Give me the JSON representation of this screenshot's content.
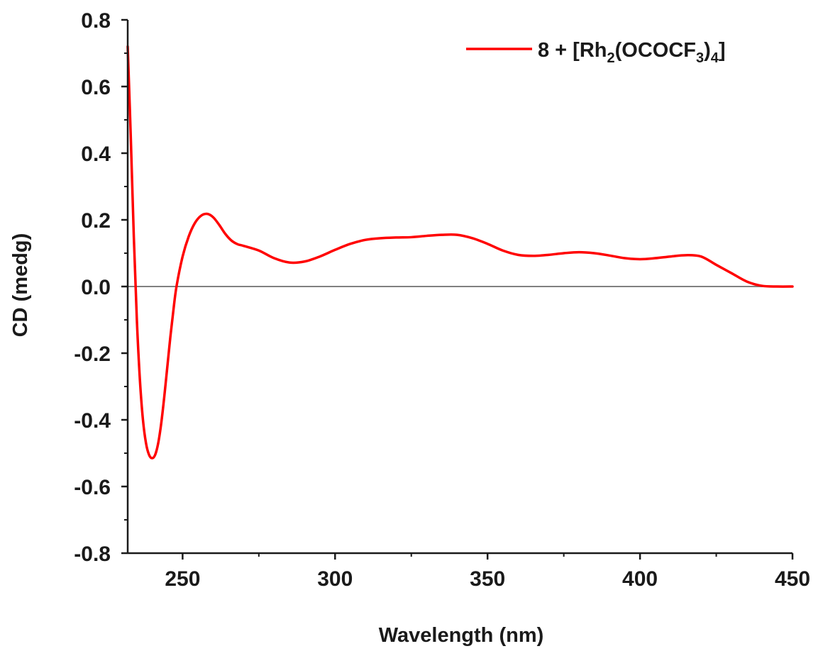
{
  "chart_data": {
    "type": "line",
    "xlabel": "Wavelength (nm)",
    "ylabel": "CD  (medg)",
    "xlim": [
      232,
      450
    ],
    "ylim": [
      -0.8,
      0.8
    ],
    "xticks": [
      {
        "value": 250,
        "label": "250"
      },
      {
        "value": 300,
        "label": "300"
      },
      {
        "value": 350,
        "label": "350"
      },
      {
        "value": 400,
        "label": "400"
      },
      {
        "value": 450,
        "label": "450"
      }
    ],
    "yticks": [
      {
        "value": 0.8,
        "label": "0.8"
      },
      {
        "value": 0.6,
        "label": "0.6"
      },
      {
        "value": 0.4,
        "label": "0.4"
      },
      {
        "value": 0.2,
        "label": "0.2"
      },
      {
        "value": 0.0,
        "label": "0.0"
      },
      {
        "value": -0.2,
        "label": "-0.2"
      },
      {
        "value": -0.4,
        "label": "-0.4"
      },
      {
        "value": -0.6,
        "label": "-0.6"
      },
      {
        "value": -0.8,
        "label": "-0.8"
      }
    ],
    "zero_line": true,
    "grid": false,
    "legend_position": "top-right",
    "series": [
      {
        "name": "8 + [Rh2(OCOCF3)4]",
        "legend_parts": [
          "8 + [Rh",
          "2",
          "(OCOCF",
          "3",
          ")",
          "4",
          "]"
        ],
        "color": "#ff0000",
        "x": [
          232,
          233,
          234,
          235,
          236,
          237,
          238,
          239,
          240,
          241,
          242,
          243,
          244,
          245,
          246,
          247,
          248,
          250,
          252,
          254,
          256,
          258,
          260,
          262,
          264,
          266,
          268,
          270,
          275,
          280,
          285,
          290,
          295,
          300,
          305,
          310,
          315,
          320,
          325,
          330,
          335,
          340,
          345,
          350,
          355,
          360,
          365,
          370,
          375,
          380,
          385,
          390,
          395,
          400,
          405,
          410,
          415,
          420,
          425,
          430,
          435,
          440,
          445,
          450
        ],
        "y": [
          0.72,
          0.45,
          0.15,
          -0.1,
          -0.28,
          -0.4,
          -0.47,
          -0.505,
          -0.515,
          -0.505,
          -0.47,
          -0.41,
          -0.33,
          -0.24,
          -0.15,
          -0.07,
          0.0,
          0.09,
          0.15,
          0.19,
          0.212,
          0.218,
          0.208,
          0.185,
          0.158,
          0.138,
          0.127,
          0.122,
          0.108,
          0.085,
          0.072,
          0.075,
          0.09,
          0.11,
          0.128,
          0.14,
          0.145,
          0.147,
          0.148,
          0.152,
          0.155,
          0.155,
          0.145,
          0.128,
          0.108,
          0.095,
          0.092,
          0.095,
          0.1,
          0.103,
          0.1,
          0.093,
          0.085,
          0.082,
          0.085,
          0.09,
          0.094,
          0.09,
          0.065,
          0.04,
          0.015,
          0.002,
          0.0,
          0.0
        ]
      }
    ]
  }
}
